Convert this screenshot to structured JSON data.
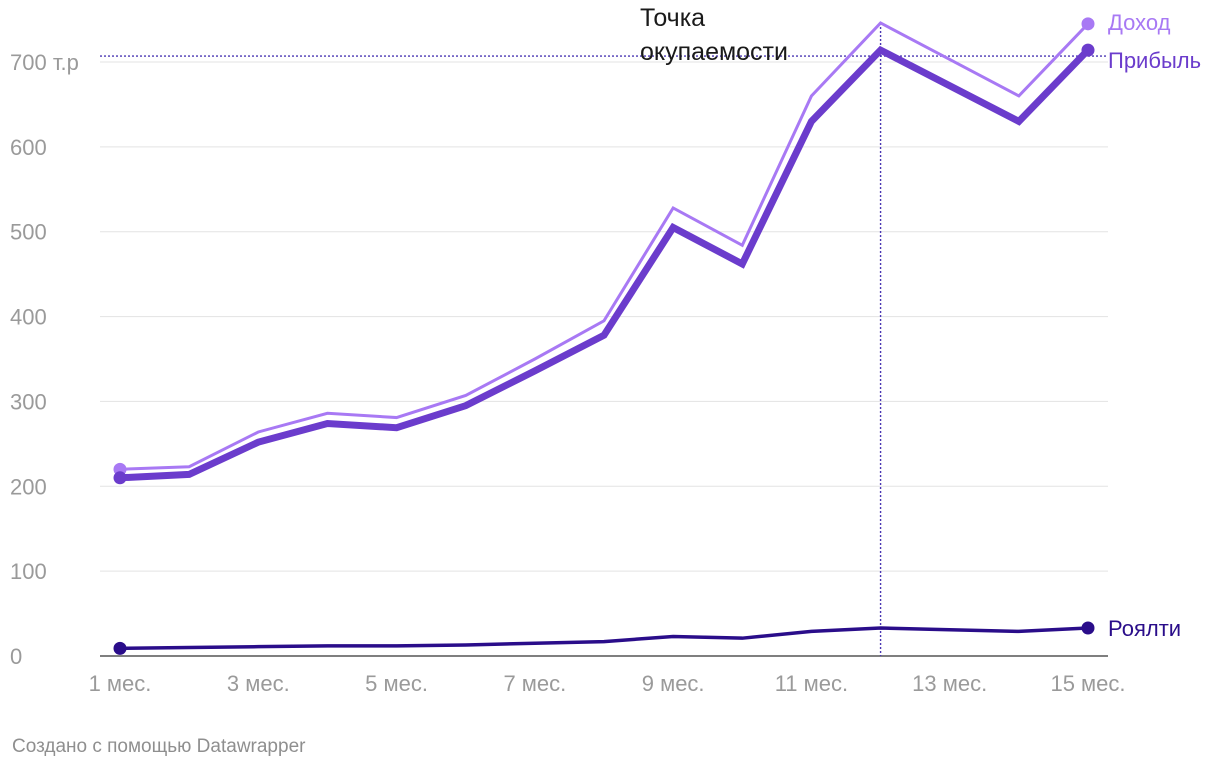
{
  "chart_data": {
    "type": "line",
    "x": [
      1,
      2,
      3,
      4,
      5,
      6,
      7,
      8,
      9,
      10,
      11,
      12,
      13,
      14,
      15
    ],
    "x_tick_values": [
      1,
      3,
      5,
      7,
      9,
      11,
      13,
      15
    ],
    "x_tick_labels": [
      "1 мес.",
      "3 мес.",
      "5 мес.",
      "7 мес.",
      "9 мес.",
      "11 мес.",
      "13 мес.",
      "15 мес."
    ],
    "y_tick_values": [
      0,
      100,
      200,
      300,
      400,
      500,
      600,
      700
    ],
    "y_tick_labels": [
      "0",
      "100",
      "200",
      "300",
      "400",
      "500",
      "600",
      "700 т.р"
    ],
    "xlim": [
      1,
      15
    ],
    "ylim": [
      0,
      700
    ],
    "grid": true,
    "series": [
      {
        "name": "Доход",
        "color": "#a879f4",
        "stroke": "thin",
        "values": [
          220,
          223,
          264,
          286,
          281,
          307,
          350,
          395,
          528,
          484,
          660,
          746,
          703,
          660,
          745
        ]
      },
      {
        "name": "Прибыль",
        "color": "#6b3ccc",
        "stroke": "thick",
        "values": [
          210,
          214,
          252,
          274,
          269,
          295,
          336,
          378,
          505,
          462,
          630,
          714,
          672,
          630,
          714
        ]
      },
      {
        "name": "Роялти",
        "color": "#2a0d8a",
        "stroke": "medium",
        "values": [
          9,
          10,
          11,
          12,
          12,
          13,
          15,
          17,
          23,
          21,
          29,
          33,
          31,
          29,
          33
        ]
      }
    ],
    "reference_lines": [
      {
        "axis": "y",
        "value": 707,
        "color": "#4a37b3"
      },
      {
        "axis": "x",
        "value": 12,
        "color": "#4a37b3"
      }
    ],
    "annotation": {
      "line1": "Точка",
      "line2": "окупаемости"
    }
  },
  "footer": "Создано с помощью Datawrapper"
}
